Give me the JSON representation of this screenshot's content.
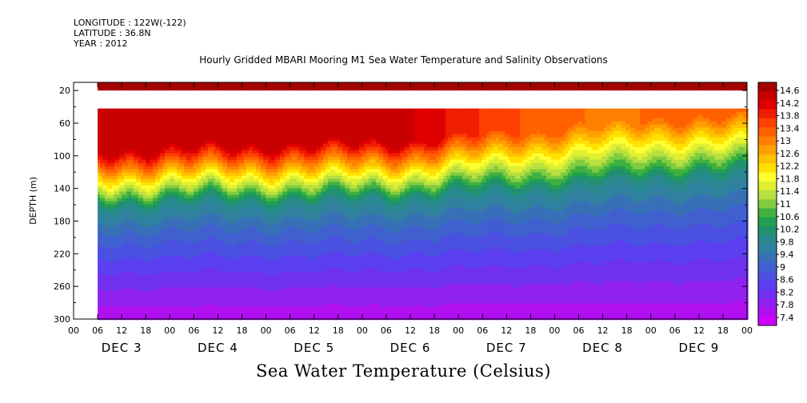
{
  "header": {
    "longitude": "LONGITUDE : 122W(-122)",
    "latitude": "LATITUDE : 36.8N",
    "year": "YEAR : 2012"
  },
  "colorbar": {
    "labels": [
      "14.6",
      "14.2",
      "13.8",
      "13.4",
      "13",
      "12.6",
      "12.2",
      "11.8",
      "11.4",
      "11",
      "10.6",
      "10.2",
      "9.8",
      "9.4",
      "9",
      "8.6",
      "8.2",
      "7.8",
      "7.4"
    ],
    "colors": [
      "#a50000",
      "#c80000",
      "#e00000",
      "#f01e00",
      "#ff4000",
      "#ff6000",
      "#ff8000",
      "#ffa000",
      "#ffc000",
      "#ffe000",
      "#ffff30",
      "#e0f030",
      "#b8e040",
      "#80cc40",
      "#40b040",
      "#20a050",
      "#209070",
      "#2a8890",
      "#3080a0",
      "#3870b8",
      "#4060d0",
      "#4a50e0",
      "#5a40f0",
      "#7030f0",
      "#9020f0",
      "#b010f0",
      "#d000ff"
    ]
  },
  "chart_data": {
    "type": "heatmap",
    "title": "Hourly Gridded MBARI Mooring M1 Sea Water Temperature and Salinity Observations",
    "colorbar_title": "Sea Water Temperature (Celsius)",
    "ylabel": "DEPTH (m)",
    "y_ticks": [
      20,
      60,
      100,
      140,
      180,
      220,
      260,
      300
    ],
    "ylim": [
      300,
      10
    ],
    "x_hour_ticks": [
      "00",
      "06",
      "12",
      "18",
      "00",
      "06",
      "12",
      "18",
      "00",
      "06",
      "12",
      "18",
      "00",
      "06",
      "12",
      "18",
      "00",
      "06",
      "12",
      "18",
      "00",
      "06",
      "12",
      "18",
      "00",
      "06",
      "12",
      "18",
      "00"
    ],
    "x_day_labels": [
      "DEC 3",
      "DEC 4",
      "DEC 5",
      "DEC 6",
      "DEC 7",
      "DEC 8",
      "DEC 9"
    ],
    "color_scale": {
      "min": 7.4,
      "max": 14.6,
      "step": 0.4
    },
    "data_start": "DEC 3 06:00",
    "near_surface_layer": {
      "depth_range_m": [
        10,
        20
      ],
      "temperature": 14.6
    },
    "missing_depth_range_m": [
      20,
      42
    ],
    "thermocline_depth_by_day_m": {
      "DEC 3": 110,
      "DEC 4": 105,
      "DEC 5": 105,
      "DEC 6": 100,
      "DEC 7": 90,
      "DEC 8": 80,
      "DEC 9": 70
    },
    "surface_temperature_by_day": {
      "DEC 3": 14.4,
      "DEC 4": 14.4,
      "DEC 5": 14.2,
      "DEC 6": 14.2,
      "DEC 7": 13.4,
      "DEC 8": 13.0,
      "DEC 9": 13.2
    },
    "bottom_temperature": 7.6
  }
}
